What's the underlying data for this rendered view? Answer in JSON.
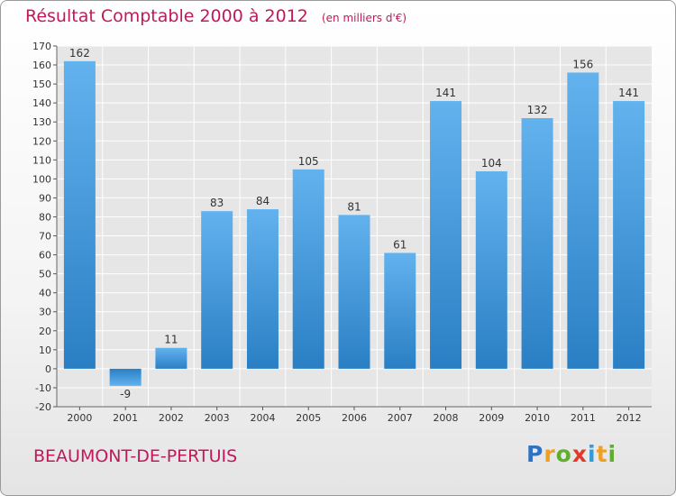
{
  "header": {
    "title": "Résultat Comptable 2000 à 2012",
    "subtitle": "(en milliers d'€)"
  },
  "footer": {
    "town": "BEAUMONT-DE-PERTUIS",
    "logo_text": "Proxiti"
  },
  "colors": {
    "title": "#c2185b",
    "bar_light": "#62b2ee",
    "bar_dark": "#2a7fc4",
    "plot_bg": "#e6e6e6",
    "grid": "#ffffff"
  },
  "chart_data": {
    "type": "bar",
    "title": "Résultat Comptable 2000 à 2012",
    "subtitle": "(en milliers d'€)",
    "xlabel": "",
    "ylabel": "",
    "categories": [
      "2000",
      "2001",
      "2002",
      "2003",
      "2004",
      "2005",
      "2006",
      "2007",
      "2008",
      "2009",
      "2010",
      "2011",
      "2012"
    ],
    "values": [
      162,
      -9,
      11,
      83,
      84,
      105,
      81,
      61,
      141,
      104,
      132,
      156,
      141
    ],
    "ylim": [
      -20,
      170
    ],
    "yticks": [
      -20,
      -10,
      0,
      10,
      20,
      30,
      40,
      50,
      60,
      70,
      80,
      90,
      100,
      110,
      120,
      130,
      140,
      150,
      160,
      170
    ],
    "grid": true,
    "legend": "none"
  }
}
